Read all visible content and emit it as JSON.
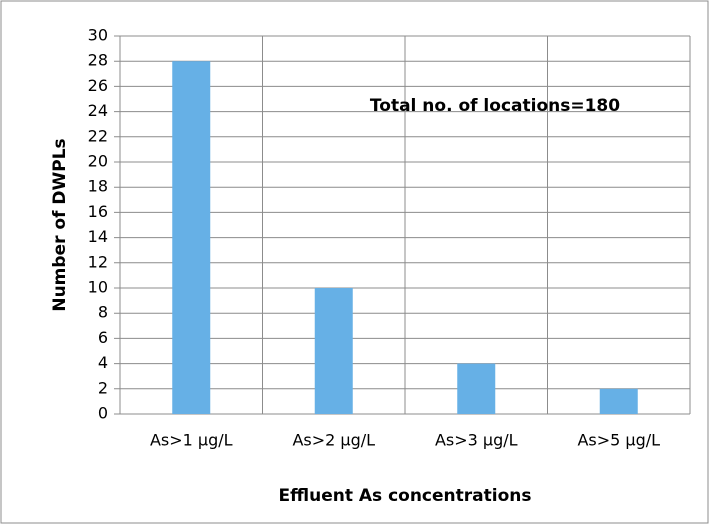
{
  "chart_data": {
    "type": "bar",
    "categories": [
      "As>1 µg/L",
      "As>2 µg/L",
      "As>3 µg/L",
      "As>5 µg/L"
    ],
    "values": [
      28,
      10,
      4,
      2
    ],
    "color": "#66b0e6",
    "ylim": [
      0,
      30
    ],
    "yticks": [
      0,
      2,
      4,
      6,
      8,
      10,
      12,
      14,
      16,
      18,
      20,
      22,
      24,
      26,
      28,
      30
    ],
    "grid": true,
    "x_label": "Effluent As concentrations",
    "y_label": "Number of DWPLs",
    "annotation": "Total no. of locations=180"
  }
}
